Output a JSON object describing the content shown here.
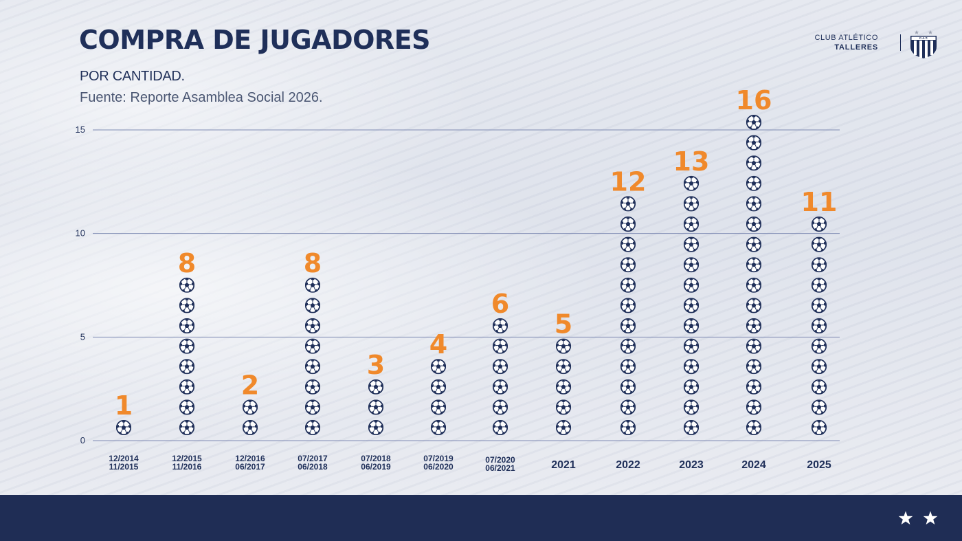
{
  "header": {
    "title": "COMPRA DE JUGADORES",
    "subtitle": "POR CANTIDAD.",
    "source": "Fuente: Reporte Asamblea Social 2026."
  },
  "brand": {
    "line1": "CLUB ATLÉTICO",
    "line2": "TALLERES",
    "crest_text": "C.A.T."
  },
  "colors": {
    "navy": "#1f2f59",
    "orange": "#f0892b",
    "grid": "#7f8bb3",
    "footer": "#1f2d55"
  },
  "icons": {
    "data_mark": "soccer-ball-icon",
    "footer": "star-icon"
  },
  "chart_data": {
    "type": "bar",
    "ylim": [
      0,
      15
    ],
    "yticks": [
      0,
      5,
      10,
      15
    ],
    "grid": true,
    "categories": [
      [
        "12/2014",
        "11/2015"
      ],
      [
        "12/2015",
        "11/2016"
      ],
      [
        "12/2016",
        "06/2017"
      ],
      [
        "07/2017",
        "06/2018"
      ],
      [
        "07/2018",
        "06/2019"
      ],
      [
        "07/2019",
        "06/2020"
      ],
      [
        "07/2020",
        "06/2021"
      ],
      [
        "2021"
      ],
      [
        "2022"
      ],
      [
        "2023"
      ],
      [
        "2024"
      ],
      [
        "2025"
      ]
    ],
    "values": [
      1,
      8,
      2,
      8,
      3,
      4,
      6,
      5,
      12,
      13,
      16,
      11
    ]
  }
}
